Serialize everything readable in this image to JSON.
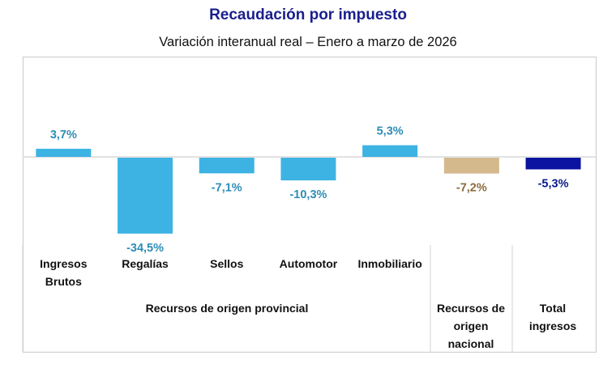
{
  "chart_data": {
    "type": "bar",
    "title": "Recaudación por impuesto",
    "subtitle": "Variación interanual real – Enero a marzo de 2026",
    "categories": [
      "Ingresos Brutos",
      "Regalías",
      "Sellos",
      "Automotor",
      "Inmobiliario",
      "",
      ""
    ],
    "category_lines": [
      [
        "Ingresos",
        "Brutos"
      ],
      [
        "Regalías"
      ],
      [
        "Sellos"
      ],
      [
        "Automotor"
      ],
      [
        "Inmobiliario"
      ],
      [],
      []
    ],
    "groups": [
      {
        "label_lines": [
          "Recursos de origen provincial"
        ],
        "members": [
          0,
          1,
          2,
          3,
          4
        ]
      },
      {
        "label_lines": [
          "Recursos de",
          "origen",
          "nacional"
        ],
        "members": [
          5
        ]
      },
      {
        "label_lines": [
          "Total",
          "ingresos"
        ],
        "members": [
          6
        ]
      }
    ],
    "values": [
      3.7,
      -34.5,
      -7.1,
      -10.3,
      5.3,
      -7.2,
      -5.3
    ],
    "data_labels": [
      "3,7%",
      "-34,5%",
      "-7,1%",
      "-10,3%",
      "5,3%",
      "-7,2%",
      "-5,3%"
    ],
    "bar_colors": [
      "#3db3e3",
      "#3db3e3",
      "#3db3e3",
      "#3db3e3",
      "#3db3e3",
      "#d4b98c",
      "#0a14a0"
    ],
    "label_colors": [
      "#2e8db6",
      "#2e8db6",
      "#2e8db6",
      "#2e8db6",
      "#2e8db6",
      "#8a6a3a",
      "#0a1a8a"
    ],
    "unit": "%",
    "grid": false
  }
}
